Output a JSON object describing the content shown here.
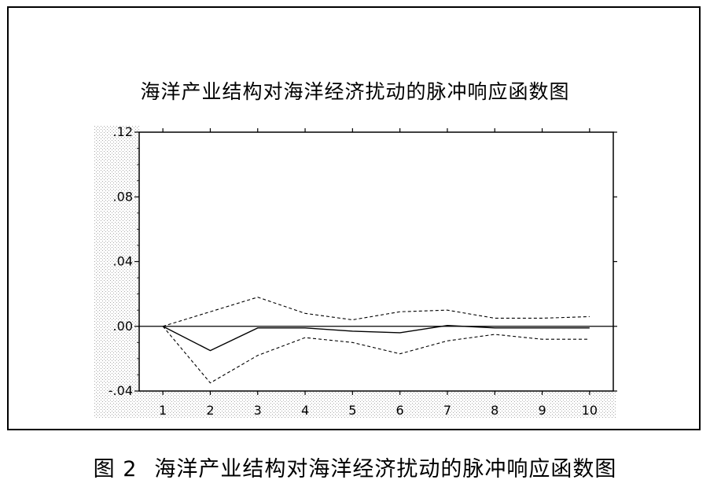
{
  "caption": {
    "label": "图 2",
    "text": "海洋产业结构对海洋经济扰动的脉冲响应函数图"
  },
  "chart_data": {
    "type": "line",
    "title": "海洋产业结构对海洋经济扰动的脉冲响应函数图",
    "x": [
      1,
      2,
      3,
      4,
      5,
      6,
      7,
      8,
      9,
      10
    ],
    "y_tick_labels": [
      "-.04",
      ".00",
      ".04",
      ".08",
      ".12"
    ],
    "y_ticks": [
      -0.04,
      0.0,
      0.04,
      0.08,
      0.12
    ],
    "x_tick_labels": [
      "1",
      "2",
      "3",
      "4",
      "5",
      "6",
      "7",
      "8",
      "9",
      "10"
    ],
    "ylim": [
      -0.04,
      0.12
    ],
    "xlim": [
      0.5,
      10.5
    ],
    "grid": false,
    "zero_line": true,
    "series": [
      {
        "style": "solid",
        "values": [
          0.0,
          -0.015,
          -0.001,
          -0.001,
          -0.003,
          -0.004,
          0.0005,
          -0.001,
          -0.001,
          -0.001
        ]
      },
      {
        "style": "dashed",
        "values": [
          0.0,
          0.009,
          0.018,
          0.008,
          0.004,
          0.009,
          0.01,
          0.005,
          0.005,
          0.006
        ]
      },
      {
        "style": "dashed",
        "values": [
          0.0,
          -0.035,
          -0.018,
          -0.007,
          -0.01,
          -0.017,
          -0.009,
          -0.005,
          -0.008,
          -0.008
        ]
      }
    ],
    "colors": {
      "line": "#000000",
      "stipple": "#b0b0b0"
    }
  }
}
